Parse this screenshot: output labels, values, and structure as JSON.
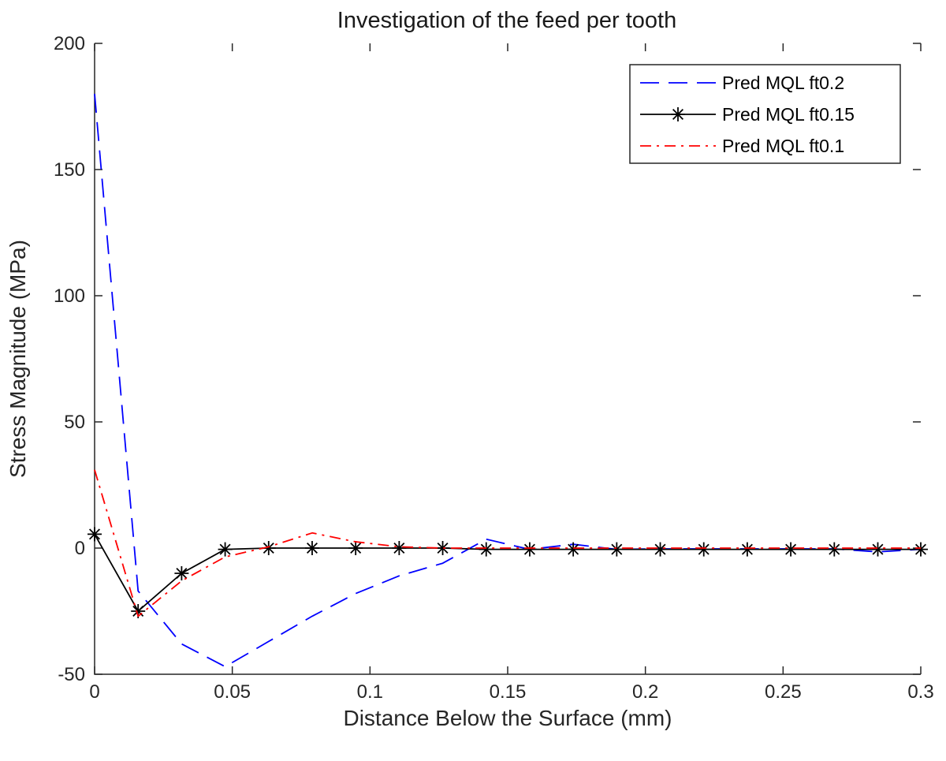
{
  "chart_data": {
    "type": "line",
    "title": "Investigation of the feed per tooth",
    "xlabel": "Distance Below the Surface (mm)",
    "ylabel": "Stress Magnitude (MPa)",
    "xlim": [
      0,
      0.3
    ],
    "ylim": [
      -50,
      200
    ],
    "xticks": [
      0,
      0.05,
      0.1,
      0.15,
      0.2,
      0.25,
      0.3
    ],
    "xtick_labels": [
      "0",
      "0.05",
      "0.1",
      "0.15",
      "0.2",
      "0.25",
      "0.3"
    ],
    "yticks": [
      -50,
      0,
      50,
      100,
      150,
      200
    ],
    "ytick_labels": [
      "-50",
      "0",
      "50",
      "100",
      "150",
      "200"
    ],
    "grid": false,
    "legend_position": "top-right",
    "series": [
      {
        "name": "Pred MQL ft0.2",
        "color": "#0000ff",
        "line_style": "dashed",
        "marker": "none",
        "x": [
          0,
          0.0158,
          0.0316,
          0.0474,
          0.0632,
          0.079,
          0.0948,
          0.1106,
          0.1264,
          0.1422,
          0.158,
          0.1738,
          0.1896,
          0.2054,
          0.2212,
          0.237,
          0.2528,
          0.2686,
          0.2844,
          0.3
        ],
        "y": [
          180,
          -17,
          -38,
          -47,
          -37,
          -27,
          -18,
          -11,
          -6,
          3.5,
          -0.5,
          1.5,
          -0.5,
          -0.3,
          -0.3,
          -0.3,
          -0.3,
          -0.3,
          -1.5,
          -0.5
        ]
      },
      {
        "name": "Pred MQL ft0.15",
        "color": "#000000",
        "line_style": "solid",
        "marker": "asterisk",
        "x": [
          0,
          0.0158,
          0.0316,
          0.0474,
          0.0632,
          0.079,
          0.0948,
          0.1106,
          0.1264,
          0.1422,
          0.158,
          0.1738,
          0.1896,
          0.2054,
          0.2212,
          0.237,
          0.2528,
          0.2686,
          0.2844,
          0.3
        ],
        "y": [
          5.5,
          -25,
          -10,
          -0.5,
          0,
          0,
          0,
          0,
          0,
          -0.5,
          -0.5,
          -0.5,
          -0.5,
          -0.5,
          -0.5,
          -0.5,
          -0.5,
          -0.5,
          -0.5,
          -0.5
        ]
      },
      {
        "name": "Pred MQL ft0.1",
        "color": "#ff0000",
        "line_style": "dashdot",
        "marker": "none",
        "x": [
          0,
          0.0158,
          0.0316,
          0.0474,
          0.0632,
          0.079,
          0.0948,
          0.1106,
          0.1264,
          0.1422,
          0.158,
          0.1738,
          0.1896,
          0.2054,
          0.2212,
          0.237,
          0.2528,
          0.2686,
          0.2844,
          0.3
        ],
        "y": [
          31,
          -27,
          -13,
          -3.5,
          0.5,
          6,
          2.5,
          0.5,
          0,
          0,
          0,
          0,
          0,
          0,
          0,
          0,
          0,
          0,
          0,
          0
        ]
      }
    ]
  }
}
